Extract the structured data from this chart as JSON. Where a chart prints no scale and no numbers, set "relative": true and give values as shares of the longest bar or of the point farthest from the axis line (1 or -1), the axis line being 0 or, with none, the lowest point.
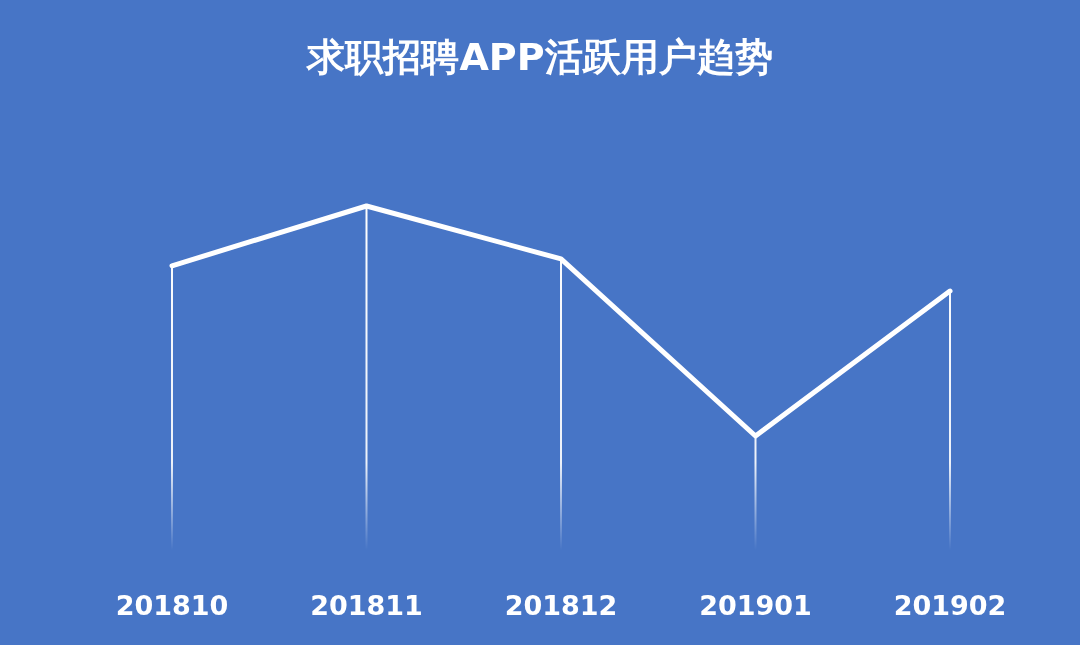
{
  "chart_data": {
    "type": "line",
    "title": "求职招聘APP活跃用户趋势",
    "relative": true,
    "categories": [
      "201810",
      "201811",
      "201812",
      "201901",
      "201902"
    ],
    "values": [
      0.74,
      1,
      0.77,
      0,
      0.63
    ],
    "color": "#ffffff",
    "grid": "x"
  }
}
